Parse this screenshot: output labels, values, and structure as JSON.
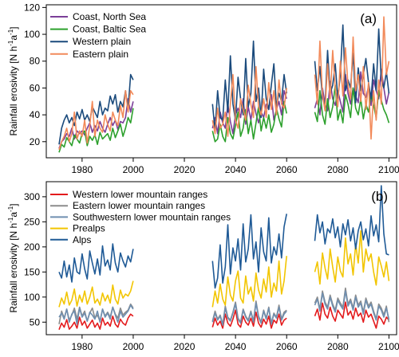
{
  "ylabel_parts": {
    "prefix": "Rainfall erosivity [N h",
    "sup1": "-1",
    "mid": "a",
    "sup2": "-1",
    "suffix": "]"
  },
  "chart_data": [
    {
      "type": "line",
      "panel_label": "(a)",
      "xlabel": "",
      "xlim": [
        1966,
        2103
      ],
      "xticks": [
        1980,
        2000,
        2020,
        2040,
        2060,
        2080,
        2100
      ],
      "ylim": [
        8,
        122
      ],
      "yticks": [
        20,
        40,
        60,
        80,
        100,
        120
      ],
      "grid": false,
      "legend_position": "top-left",
      "periods": [
        {
          "start": 1971,
          "end": 2000
        },
        {
          "start": 2031,
          "end": 2060
        },
        {
          "start": 2071,
          "end": 2100
        }
      ],
      "series": [
        {
          "name": "Coast, North Sea",
          "color": "#7b3f98",
          "values": [
            [
              15,
              20,
              22,
              26,
              24,
              30,
              22,
              28,
              26,
              28,
              25,
              30,
              34,
              27,
              32,
              28,
              35,
              30,
              27,
              33,
              38,
              32,
              36,
              29,
              35,
              34,
              38,
              52,
              42,
              50
            ],
            [
              30,
              38,
              26,
              42,
              34,
              30,
              48,
              35,
              26,
              40,
              45,
              38,
              52,
              33,
              46,
              36,
              50,
              41,
              34,
              42,
              38,
              48,
              44,
              55,
              36,
              44,
              50,
              40,
              58,
              52
            ],
            [
              45,
              52,
              40,
              60,
              48,
              43,
              65,
              52,
              47,
              58,
              50,
              42,
              70,
              56,
              48,
              60,
              54,
              49,
              72,
              56,
              53,
              61,
              47,
              66,
              58,
              52,
              74,
              60,
              48,
              57
            ]
          ]
        },
        {
          "name": "Coast, Baltic Sea",
          "color": "#2ca02c",
          "values": [
            [
              12,
              18,
              16,
              23,
              20,
              17,
              25,
              22,
              19,
              26,
              28,
              17,
              24,
              21,
              25,
              18,
              27,
              22,
              24,
              26,
              21,
              30,
              23,
              28,
              33,
              24,
              30,
              38,
              34,
              45
            ],
            [
              28,
              20,
              22,
              33,
              24,
              20,
              38,
              26,
              22,
              32,
              42,
              24,
              30,
              44,
              26,
              36,
              22,
              34,
              46,
              28,
              38,
              30,
              40,
              27,
              33,
              45,
              37,
              31,
              50,
              41
            ],
            [
              42,
              35,
              58,
              40,
              33,
              52,
              38,
              46,
              62,
              36,
              44,
              34,
              55,
              48,
              38,
              60,
              45,
              40,
              52,
              37,
              48,
              42,
              56,
              47,
              38,
              58,
              51,
              44,
              40,
              34
            ]
          ]
        },
        {
          "name": "Western plain",
          "color": "#1a4a7c",
          "values": [
            [
              18,
              30,
              36,
              40,
              34,
              38,
              32,
              42,
              37,
              44,
              36,
              40,
              35,
              46,
              42,
              38,
              50,
              40,
              45,
              43,
              54,
              48,
              55,
              42,
              50,
              46,
              58,
              44,
              70,
              66
            ],
            [
              48,
              28,
              58,
              38,
              36,
              66,
              42,
              84,
              48,
              36,
              68,
              52,
              40,
              82,
              46,
              56,
              95,
              50,
              60,
              38,
              74,
              52,
              44,
              62,
              78,
              46,
              56,
              50,
              70,
              56
            ],
            [
              80,
              58,
              76,
              53,
              46,
              88,
              56,
              62,
              78,
              52,
              70,
              107,
              58,
              66,
              60,
              86,
              49,
              75,
              58,
              70,
              82,
              64,
              52,
              78,
              58,
              104,
              66,
              60,
              72,
              56
            ]
          ]
        },
        {
          "name": "Eastern plain",
          "color": "#f28a5a",
          "values": [
            [
              14,
              20,
              24,
              30,
              20,
              26,
              42,
              22,
              28,
              24,
              36,
              19,
              32,
              50,
              24,
              36,
              30,
              27,
              40,
              33,
              28,
              42,
              36,
              32,
              47,
              38,
              58,
              42,
              58,
              55
            ],
            [
              36,
              26,
              45,
              30,
              33,
              42,
              24,
              48,
              70,
              36,
              30,
              52,
              44,
              36,
              62,
              48,
              38,
              76,
              46,
              40,
              52,
              38,
              64,
              44,
              58,
              40,
              66,
              48,
              45,
              60
            ],
            [
              70,
              48,
              95,
              55,
              43,
              78,
              52,
              88,
              60,
              46,
              80,
              54,
              90,
              62,
              52,
              98,
              58,
              70,
              50,
              76,
              44,
              64,
              22,
              58,
              36,
              66,
              48,
              113,
              70,
              80
            ]
          ]
        }
      ]
    },
    {
      "type": "line",
      "panel_label": "(b)",
      "xlabel": "",
      "xlim": [
        1966,
        2103
      ],
      "xticks": [
        1980,
        2000,
        2020,
        2040,
        2060,
        2080,
        2100
      ],
      "ylim": [
        25,
        330
      ],
      "yticks": [
        50,
        100,
        150,
        200,
        250,
        300
      ],
      "grid": false,
      "legend_position": "top-left",
      "periods": [
        {
          "start": 1971,
          "end": 2000
        },
        {
          "start": 2031,
          "end": 2060
        },
        {
          "start": 2071,
          "end": 2100
        }
      ],
      "series": [
        {
          "name": "Western lower mountain ranges",
          "color": "#e31a1c",
          "values": [
            [
              35,
              48,
              40,
              55,
              36,
              42,
              50,
              38,
              60,
              44,
              52,
              38,
              46,
              54,
              40,
              48,
              36,
              58,
              44,
              50,
              42,
              62,
              46,
              40,
              56,
              48,
              44,
              58,
              66,
              62
            ],
            [
              40,
              58,
              44,
              52,
              38,
              66,
              48,
              42,
              56,
              74,
              46,
              40,
              62,
              50,
              44,
              58,
              42,
              70,
              48,
              40,
              56,
              46,
              62,
              38,
              54,
              48,
              66,
              44,
              54,
              58
            ],
            [
              62,
              76,
              54,
              88,
              66,
              58,
              80,
              62,
              52,
              74,
              66,
              58,
              90,
              64,
              72,
              56,
              78,
              62,
              68,
              50,
              74,
              60,
              66,
              52,
              38,
              62,
              56,
              46,
              60,
              54
            ]
          ]
        },
        {
          "name": "Eastern lower mountain ranges",
          "color": "#8c8c8c",
          "values": [
            [
              46,
              72,
              58,
              76,
              54,
              64,
              78,
              56,
              80,
              62,
              72,
              52,
              68,
              78,
              58,
              64,
              52,
              76,
              62,
              70,
              60,
              80,
              66,
              58,
              78,
              64,
              70,
              74,
              86,
              78
            ],
            [
              52,
              72,
              56,
              64,
              46,
              82,
              60,
              54,
              70,
              90,
              58,
              50,
              76,
              62,
              54,
              72,
              52,
              92,
              62,
              50,
              74,
              58,
              80,
              48,
              68,
              60,
              84,
              56,
              70,
              74
            ],
            [
              88,
              100,
              76,
              112,
              90,
              80,
              104,
              86,
              74,
              98,
              88,
              80,
              118,
              86,
              96,
              78,
              104,
              84,
              92,
              70,
              98,
              82,
              90,
              72,
              56,
              86,
              78,
              64,
              82,
              50
            ]
          ]
        },
        {
          "name": "Southwestern lower mountain ranges",
          "color": "#6f8fb0",
          "values": [
            [
              60,
              68,
              56,
              76,
              50,
              66,
              72,
              46,
              78,
              60,
              68,
              52,
              70,
              64,
              56,
              72,
              50,
              76,
              60,
              68,
              56,
              80,
              64,
              50,
              72,
              60,
              66,
              72,
              84,
              76
            ],
            [
              50,
              68,
              54,
              62,
              44,
              78,
              58,
              52,
              68,
              86,
              56,
              48,
              74,
              60,
              52,
              70,
              50,
              88,
              60,
              48,
              72,
              56,
              78,
              46,
              66,
              58,
              80,
              54,
              66,
              72
            ],
            [
              84,
              96,
              72,
              108,
              86,
              76,
              100,
              82,
              70,
              94,
              84,
              76,
              112,
              82,
              92,
              74,
              100,
              80,
              88,
              66,
              94,
              78,
              86,
              68,
              54,
              82,
              74,
              60,
              78,
              56
            ]
          ]
        },
        {
          "name": "Prealps",
          "color": "#f2c500",
          "values": [
            [
              80,
              98,
              86,
              110,
              84,
              94,
              116,
              82,
              104,
              90,
              112,
              86,
              100,
              120,
              88,
              96,
              84,
              108,
              92,
              104,
              88,
              124,
              96,
              86,
              114,
              98,
              106,
              102,
              112,
              132
            ],
            [
              80,
              112,
              88,
              126,
              96,
              84,
              140,
              104,
              92,
              132,
              152,
              98,
              88,
              142,
              106,
              120,
              92,
              148,
              114,
              98,
              136,
              110,
              160,
              100,
              128,
              112,
              172,
              106,
              132,
              182
            ],
            [
              150,
              170,
              126,
              188,
              158,
              136,
              196,
              160,
              130,
              180,
              152,
              140,
              218,
              166,
              186,
              144,
              206,
              168,
              232,
              150,
              196,
              172,
              186,
              150,
              124,
              180,
              162,
              140,
              170,
              132
            ]
          ]
        },
        {
          "name": "Alps",
          "color": "#1f5a96",
          "values": [
            [
              150,
              138,
              172,
              140,
              164,
              130,
              178,
              150,
              146,
              186,
              156,
              136,
              192,
              168,
              146,
              176,
              144,
              202,
              162,
              174,
              154,
              206,
              168,
              150,
              188,
              172,
              160,
              182,
              170,
              196
            ],
            [
              172,
              118,
              138,
              204,
              128,
              160,
              244,
              146,
              198,
              172,
              216,
              154,
              246,
              170,
              196,
              264,
              176,
              210,
              150,
              238,
              190,
              172,
              258,
              168,
              200,
              184,
              226,
              178,
              240,
              266
            ],
            [
              212,
              264,
              228,
              250,
              206,
              236,
              228,
              256,
              218,
              240,
              200,
              246,
              224,
              254,
              212,
              238,
              196,
              232,
              250,
              214,
              236,
              202,
              262,
              222,
              244,
              210,
              322,
              226,
              186,
              184
            ]
          ]
        }
      ]
    }
  ]
}
